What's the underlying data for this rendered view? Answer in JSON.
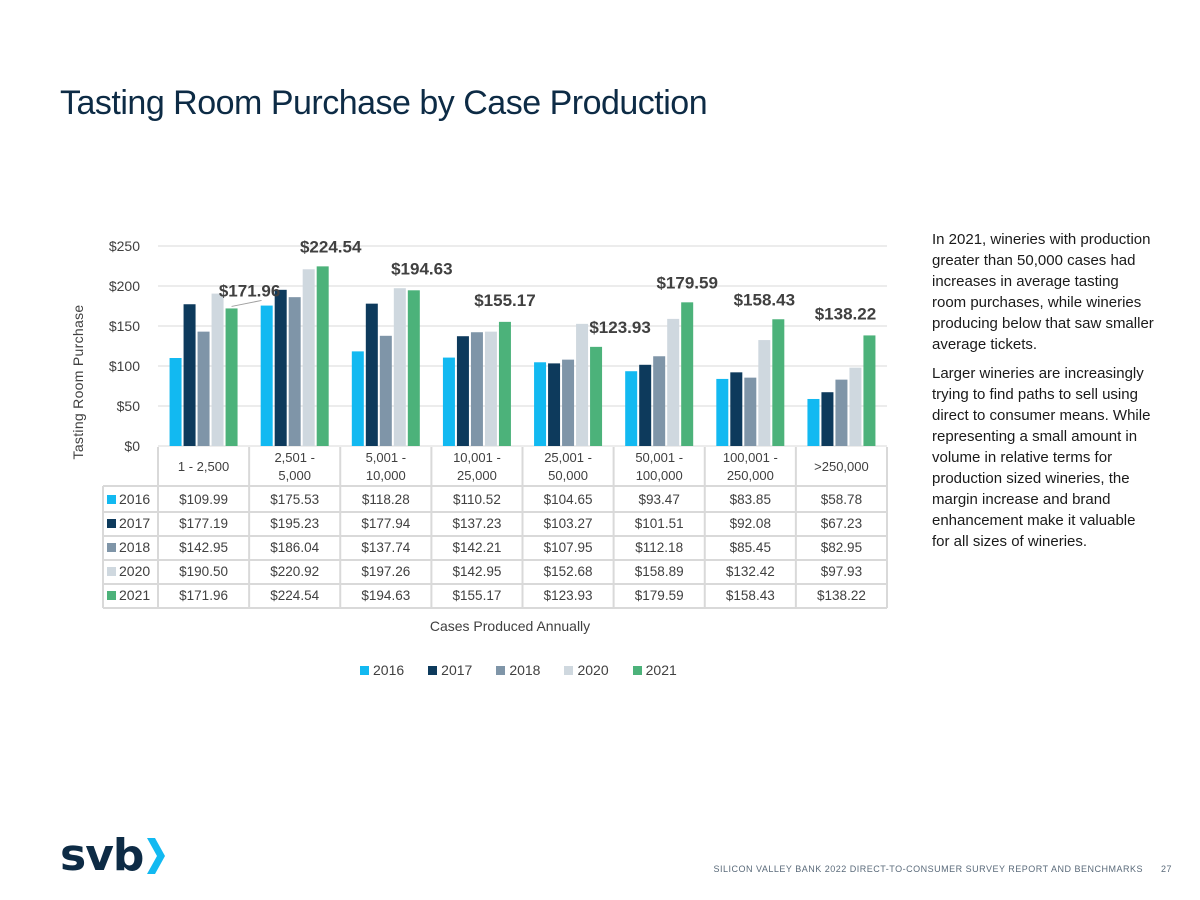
{
  "page": {
    "title": "Tasting Room Purchase by Case Production",
    "footer_text": "SILICON VALLEY BANK 2022 DIRECT-TO-CONSUMER SURVEY REPORT AND BENCHMARKS",
    "page_number": "27",
    "logo_text": "svb"
  },
  "sidebar": {
    "paragraph1": "In 2021, wineries with production greater than 50,000 cases had increases in average tasting room purchases, while wineries producing below that saw smaller average tickets.",
    "paragraph2": "Larger wineries are increasingly trying to find paths to sell using direct to consumer means. While representing a small amount in volume in relative terms for production sized wineries, the margin increase and brand enhancement make it valuable for all sizes of wineries."
  },
  "chart_data": {
    "type": "bar",
    "title": "",
    "xlabel": "Cases Produced Annually",
    "ylabel": "Tasting Room Purchase",
    "ylim": [
      0,
      250
    ],
    "yticks": [
      0,
      50,
      100,
      150,
      200,
      250
    ],
    "ytick_labels": [
      "$0",
      "$50",
      "$100",
      "$150",
      "$200",
      "$250"
    ],
    "grid": true,
    "legend_position": "bottom",
    "categories": [
      [
        "1 - 2,500"
      ],
      [
        "2,501 -",
        "5,000"
      ],
      [
        "5,001 -",
        "10,000"
      ],
      [
        "10,001 -",
        "25,000"
      ],
      [
        "25,001 -",
        "50,000"
      ],
      [
        "50,001 -",
        "100,000"
      ],
      [
        "100,001 -",
        "250,000"
      ],
      [
        ">250,000"
      ]
    ],
    "series": [
      {
        "name": "2016",
        "color": "#12b9f1",
        "values": [
          109.99,
          175.53,
          118.28,
          110.52,
          104.65,
          93.47,
          83.85,
          58.78
        ],
        "labels": [
          "$109.99",
          "$175.53",
          "$118.28",
          "$110.52",
          "$104.65",
          "$93.47",
          "$83.85",
          "$58.78"
        ]
      },
      {
        "name": "2017",
        "color": "#0d3a5c",
        "values": [
          177.19,
          195.23,
          177.94,
          137.23,
          103.27,
          101.51,
          92.08,
          67.23
        ],
        "labels": [
          "$177.19",
          "$195.23",
          "$177.94",
          "$137.23",
          "$103.27",
          "$101.51",
          "$92.08",
          "$67.23"
        ]
      },
      {
        "name": "2018",
        "color": "#7f95a8",
        "values": [
          142.95,
          186.04,
          137.74,
          142.21,
          107.95,
          112.18,
          85.45,
          82.95
        ],
        "labels": [
          "$142.95",
          "$186.04",
          "$137.74",
          "$142.21",
          "$107.95",
          "$112.18",
          "$85.45",
          "$82.95"
        ]
      },
      {
        "name": "2020",
        "color": "#cfd8df",
        "values": [
          190.5,
          220.92,
          197.26,
          142.95,
          152.68,
          158.89,
          132.42,
          97.93
        ],
        "labels": [
          "$190.50",
          "$220.92",
          "$197.26",
          "$142.95",
          "$152.68",
          "$158.89",
          "$132.42",
          "$97.93"
        ]
      },
      {
        "name": "2021",
        "color": "#4cb27a",
        "values": [
          171.96,
          224.54,
          194.63,
          155.17,
          123.93,
          179.59,
          158.43,
          138.22
        ],
        "labels": [
          "$171.96",
          "$224.54",
          "$194.63",
          "$155.17",
          "$123.93",
          "$179.59",
          "$158.43",
          "$138.22"
        ]
      }
    ],
    "annotated_series": "2021"
  }
}
